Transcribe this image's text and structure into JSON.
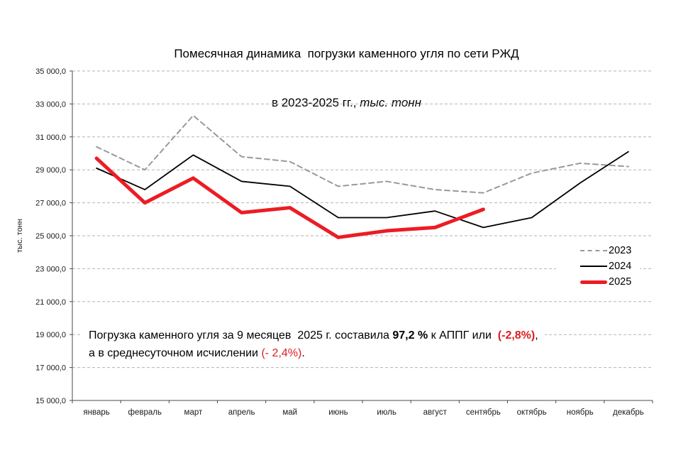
{
  "title": {
    "line1": "Помесячная динамика  погрузки каменного угля по сети РЖД",
    "line2_normal": "в 2023-2025 гг., ",
    "line2_italic": "тыс. тонн"
  },
  "colors": {
    "text_red": "#dd1c20",
    "grid": "#b3b3b3",
    "axis": "#4a4a4a",
    "series_2023": "#999999",
    "series_2024": "#000000",
    "series_2025": "#ec1c24"
  },
  "annotation": {
    "lines": [
      {
        "segments": [
          {
            "t": "Погрузка каменного угля за 9 месяцев  2025 г. составила ",
            "c": "n"
          },
          {
            "t": "97,2 %",
            "c": "b"
          },
          {
            "t": " к АППГ или  ",
            "c": "n"
          },
          {
            "t": "(-2,8%)",
            "c": "br"
          },
          {
            "t": ",",
            "c": "n"
          }
        ]
      },
      {
        "segments": [
          {
            "t": "а в среднесуточном исчислении ",
            "c": "n"
          },
          {
            "t": "(- 2,4%)",
            "c": "r"
          },
          {
            "t": ".",
            "c": "n"
          }
        ]
      }
    ]
  },
  "chart_data": {
    "type": "line",
    "title": "Помесячная динамика погрузки каменного угля по сети РЖД в 2023-2025 гг., тыс. тонн",
    "xlabel": "",
    "ylabel": "тыс. тонн",
    "ylim": [
      15000,
      35000
    ],
    "grid": true,
    "legend_position": "right-middle",
    "categories": [
      "январь",
      "февраль",
      "март",
      "апрель",
      "май",
      "июнь",
      "июль",
      "август",
      "сентябрь",
      "октябрь",
      "ноябрь",
      "декабрь"
    ],
    "yticks": [
      {
        "v": 35000,
        "label": "35 000,0"
      },
      {
        "v": 33000,
        "label": "33 000,0"
      },
      {
        "v": 31000,
        "label": "31 000,0"
      },
      {
        "v": 29000,
        "label": "29 000,0"
      },
      {
        "v": 27000,
        "label": "27 000,0"
      },
      {
        "v": 25000,
        "label": "25 000,0"
      },
      {
        "v": 23000,
        "label": "23 000,0"
      },
      {
        "v": 21000,
        "label": "21 000,0"
      },
      {
        "v": 19000,
        "label": "19 000,0"
      },
      {
        "v": 17000,
        "label": "17 000,0"
      },
      {
        "v": 15000,
        "label": "15 000,0"
      }
    ],
    "series": [
      {
        "name": "2023",
        "color": "#999999",
        "dash": "7 5",
        "width": 2,
        "values": [
          30400,
          29000,
          32300,
          29800,
          29500,
          28000,
          28300,
          27800,
          27600,
          28800,
          29400,
          29200
        ]
      },
      {
        "name": "2024",
        "color": "#000000",
        "dash": "",
        "width": 1.8,
        "values": [
          29100,
          27800,
          29900,
          28300,
          28000,
          26100,
          26100,
          26500,
          25500,
          26100,
          28200,
          30100
        ]
      },
      {
        "name": "2025",
        "color": "#ec1c24",
        "dash": "",
        "width": 5,
        "values": [
          29700,
          27000,
          28500,
          26400,
          26700,
          24900,
          25300,
          25500,
          26600
        ]
      }
    ]
  }
}
